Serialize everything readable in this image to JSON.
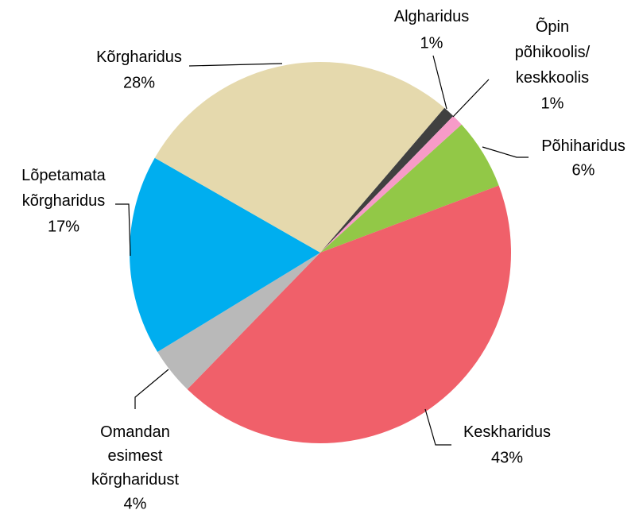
{
  "chart_data": {
    "type": "pie",
    "categories": [
      "Algharidus",
      "Õpin\npõhikoolis/\nkeskkoolis",
      "Põhiharidus",
      "Keskharidus",
      "Omandan\nesimest\nkõrgharidust",
      "Lõpetamata\nkõrgharidus",
      "Kõrgharidus"
    ],
    "values": [
      1,
      1,
      6,
      43,
      4,
      17,
      28
    ],
    "value_labels": [
      "1%",
      "1%",
      "6%",
      "43%",
      "4%",
      "17%",
      "28%"
    ],
    "colors": [
      "#404040",
      "#f79bc8",
      "#92c847",
      "#f0606a",
      "#b9b9b9",
      "#00aeef",
      "#e5d9ad"
    ]
  }
}
